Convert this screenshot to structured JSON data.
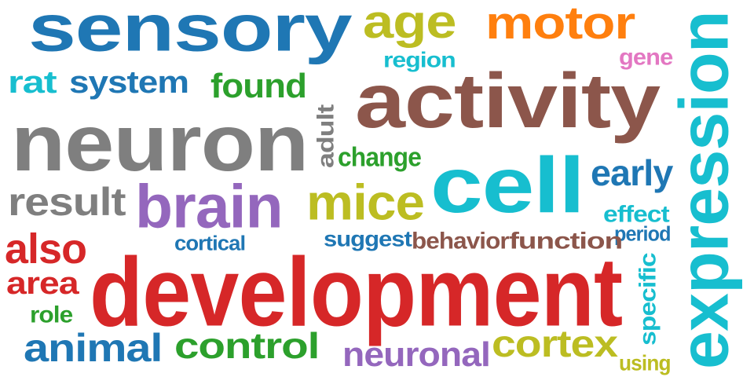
{
  "words": [
    {
      "text": "sensory",
      "color": "#1f77b4"
    },
    {
      "text": "age",
      "color": "#bcbd22"
    },
    {
      "text": "motor",
      "color": "#ff7f0e"
    },
    {
      "text": "expression",
      "color": "#17becf"
    },
    {
      "text": "region",
      "color": "#17becf"
    },
    {
      "text": "gene",
      "color": "#e377c2"
    },
    {
      "text": "rat",
      "color": "#17becf"
    },
    {
      "text": "system",
      "color": "#1f77b4"
    },
    {
      "text": "found",
      "color": "#2ca02c"
    },
    {
      "text": "activity",
      "color": "#8c564b"
    },
    {
      "text": "neuron",
      "color": "#7f7f7f"
    },
    {
      "text": "adult",
      "color": "#7f7f7f"
    },
    {
      "text": "change",
      "color": "#2ca02c"
    },
    {
      "text": "cell",
      "color": "#17becf"
    },
    {
      "text": "early",
      "color": "#1f77b4"
    },
    {
      "text": "result",
      "color": "#7f7f7f"
    },
    {
      "text": "brain",
      "color": "#9467bd"
    },
    {
      "text": "mice",
      "color": "#bcbd22"
    },
    {
      "text": "effect",
      "color": "#17becf"
    },
    {
      "text": "period",
      "color": "#1f77b4"
    },
    {
      "text": "also",
      "color": "#d62728"
    },
    {
      "text": "cortical",
      "color": "#1f77b4"
    },
    {
      "text": "suggest",
      "color": "#1f77b4"
    },
    {
      "text": "behavior",
      "color": "#8c564b"
    },
    {
      "text": "function",
      "color": "#8c564b"
    },
    {
      "text": "area",
      "color": "#d62728"
    },
    {
      "text": "development",
      "color": "#d62728"
    },
    {
      "text": "specific",
      "color": "#17becf"
    },
    {
      "text": "role",
      "color": "#2ca02c"
    },
    {
      "text": "animal",
      "color": "#1f77b4"
    },
    {
      "text": "control",
      "color": "#2ca02c"
    },
    {
      "text": "neuronal",
      "color": "#9467bd"
    },
    {
      "text": "cortex",
      "color": "#bcbd22"
    },
    {
      "text": "using",
      "color": "#bcbd22"
    }
  ]
}
